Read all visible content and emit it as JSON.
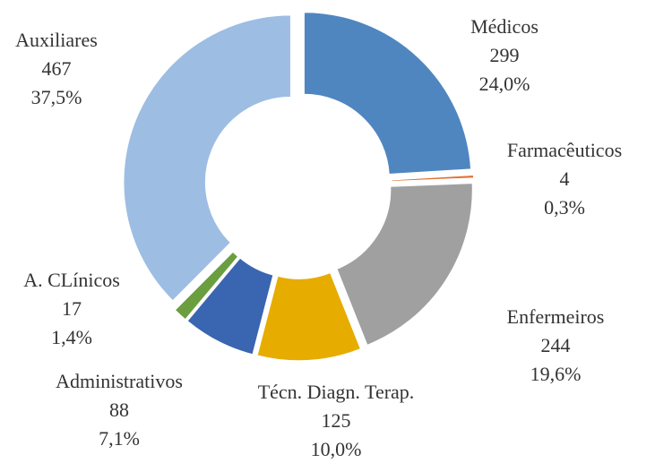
{
  "chart_data": {
    "type": "donut",
    "categories": [
      "Médicos",
      "Farmacêuticos",
      "Enfermeiros",
      "Técn. Diagn. Terap.",
      "Administrativos",
      "A. CLínicos",
      "Auxiliares"
    ],
    "values": [
      299,
      4,
      244,
      125,
      88,
      17,
      467
    ],
    "percent_labels": [
      "24,0%",
      "0,3%",
      "19,6%",
      "10,0%",
      "7,1%",
      "1,4%",
      "37,5%"
    ],
    "colors": [
      "#4f86c0",
      "#e07030",
      "#a0a0a0",
      "#e6ac00",
      "#3a65b0",
      "#6a9e3f",
      "#9dbde3"
    ]
  }
}
